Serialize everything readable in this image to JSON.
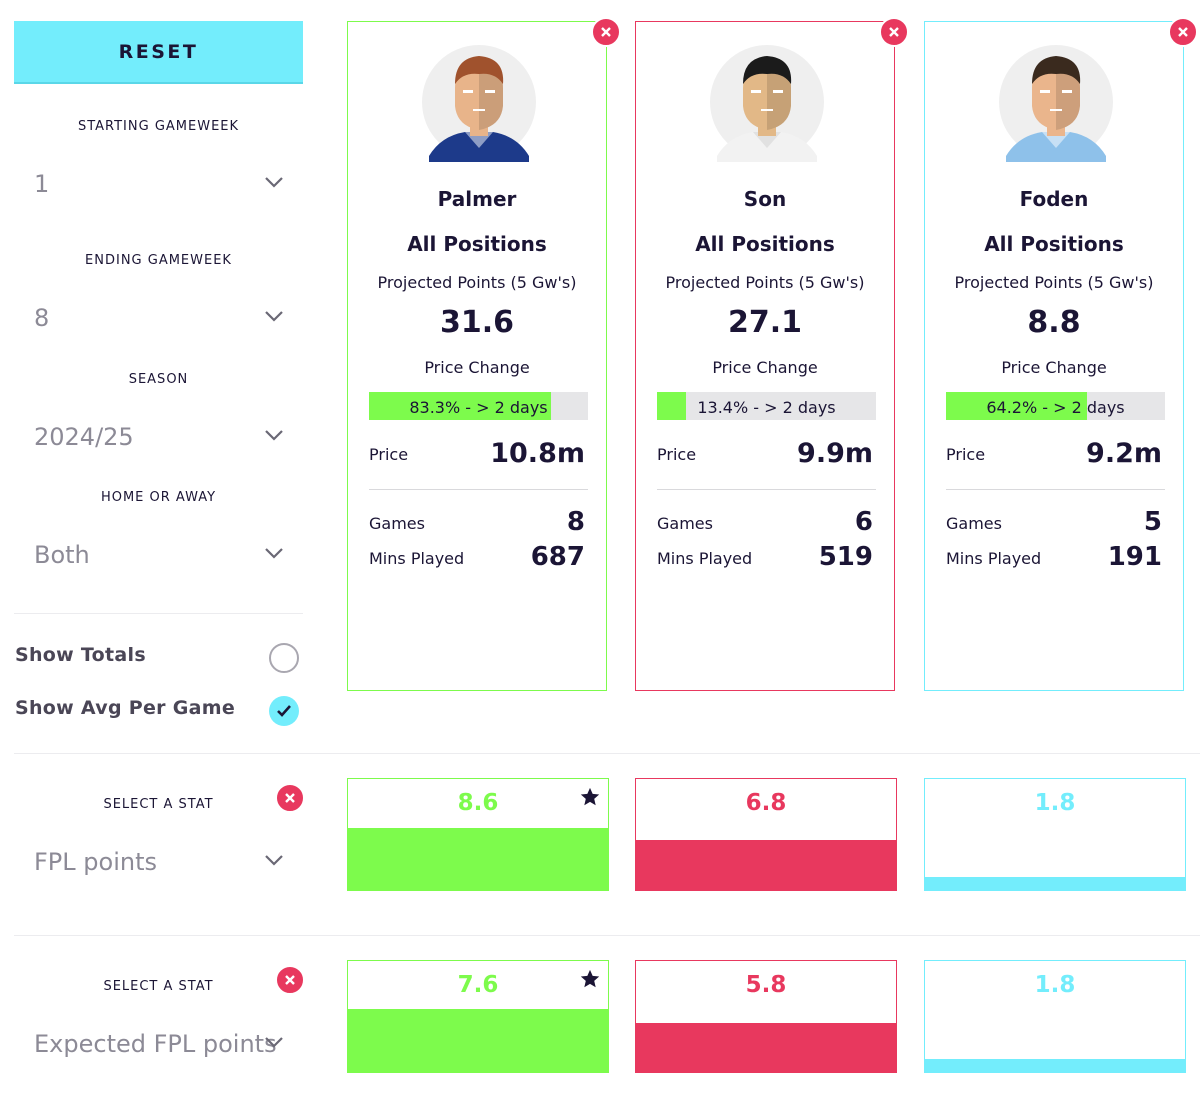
{
  "sidebar": {
    "reset_label": "RESET",
    "starting_gameweek": {
      "label": "STARTING GAMEWEEK",
      "value": "1"
    },
    "ending_gameweek": {
      "label": "ENDING GAMEWEEK",
      "value": "8"
    },
    "season": {
      "label": "SEASON",
      "value": "2024/25"
    },
    "home_or_away": {
      "label": "HOME OR AWAY",
      "value": "Both"
    },
    "show_totals": {
      "label": "Show Totals",
      "checked": false
    },
    "show_avg": {
      "label": "Show Avg Per Game",
      "checked": true
    }
  },
  "stat_selectors": [
    {
      "label": "SELECT A STAT",
      "value": "FPL points"
    },
    {
      "label": "SELECT A STAT",
      "value": "Expected FPL points"
    }
  ],
  "players": [
    {
      "name": "Palmer",
      "position": "All Positions",
      "projected_label": "Projected Points (5 Gw's)",
      "projected": "31.6",
      "price_change_label": "Price Change",
      "price_change_text": "83.3% - > 2 days",
      "price_change_pct": 83.3,
      "price_label": "Price",
      "price": "10.8m",
      "games_label": "Games",
      "games": "8",
      "mins_label": "Mins Played",
      "mins": "687",
      "color": "#7dfb4c",
      "shirt": "#1d3a8a",
      "skin": "#e8b48a",
      "hair": "#a0522d"
    },
    {
      "name": "Son",
      "position": "All Positions",
      "projected_label": "Projected Points (5 Gw's)",
      "projected": "27.1",
      "price_change_label": "Price Change",
      "price_change_text": "13.4% - > 2 days",
      "price_change_pct": 13.4,
      "price_label": "Price",
      "price": "9.9m",
      "games_label": "Games",
      "games": "6",
      "mins_label": "Mins Played",
      "mins": "519",
      "color": "#e8385e",
      "shirt": "#f2f2f2",
      "skin": "#e2b887",
      "hair": "#1b1b1b"
    },
    {
      "name": "Foden",
      "position": "All Positions",
      "projected_label": "Projected Points (5 Gw's)",
      "projected": "8.8",
      "price_change_label": "Price Change",
      "price_change_text": "64.2% - > 2 days",
      "price_change_pct": 64.2,
      "price_label": "Price",
      "price": "9.2m",
      "games_label": "Games",
      "games": "5",
      "mins_label": "Mins Played",
      "mins": "191",
      "color": "#73edfc",
      "shirt": "#8ec1ea",
      "skin": "#eab58c",
      "hair": "#3a2a1e"
    }
  ],
  "stats": [
    {
      "values": [
        "8.6",
        "6.8",
        "1.8"
      ],
      "fractions": [
        0.56,
        0.45,
        0.12
      ],
      "best_index": 0
    },
    {
      "values": [
        "7.6",
        "5.8",
        "1.8"
      ],
      "fractions": [
        0.57,
        0.44,
        0.12
      ],
      "best_index": 0
    }
  ],
  "icons": {
    "remove": "close-circle-icon",
    "chevron": "chevron-down-icon",
    "check": "check-icon",
    "star": "star-icon"
  }
}
